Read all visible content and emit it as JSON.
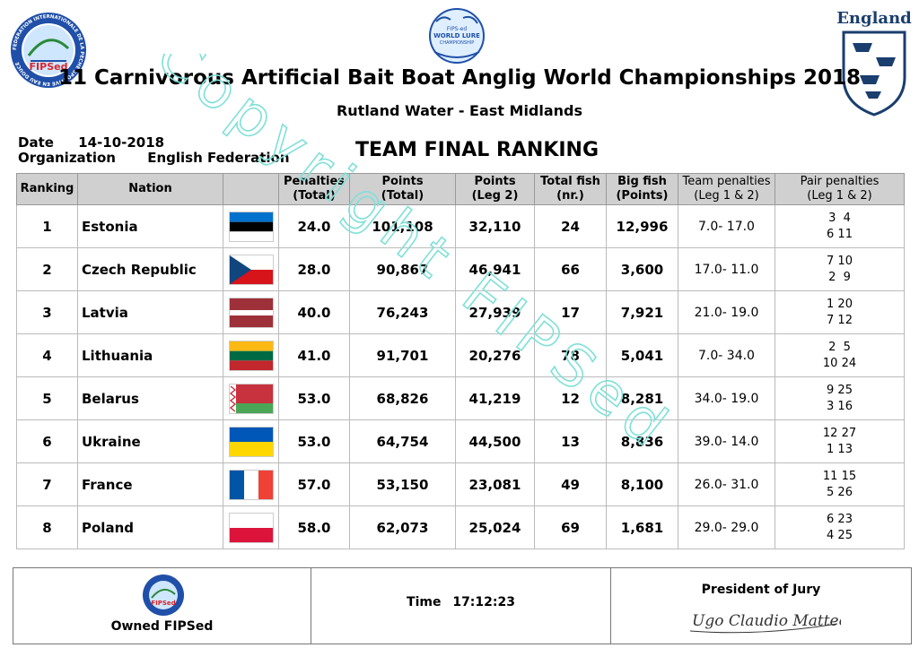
{
  "header": {
    "left_logo_text": "FIPSed",
    "left_logo_ring": "FEDERATION INTERNATIONALE DE LA PECHE SPORTIVE EN EAU DOUCE",
    "center_logo_line1": "FIPS-ed",
    "center_logo_line2": "WORLD LURE",
    "center_logo_line3": "CHAMPIONSHIP",
    "right_logo_text": "England",
    "title": "11 Carnivorous Artificial Bait Boat Anglig World Championships 2018",
    "subtitle": "Rutland Water - East Midlands"
  },
  "meta": {
    "date_label": "Date",
    "date_value": "14-10-2018",
    "org_label": "Organization",
    "org_value": "English Federation",
    "heading": "TEAM FINAL RANKING"
  },
  "table": {
    "columns": {
      "ranking": "Ranking",
      "nation": "Nation",
      "penalties_l1": "Penalties",
      "penalties_l2": "(Total)",
      "points_l1": "Points",
      "points_l2": "(Total)",
      "leg2_l1": "Points",
      "leg2_l2": "(Leg 2)",
      "fish_l1": "Total fish",
      "fish_l2": "(nr.)",
      "big_l1": "Big fish",
      "big_l2": "(Points)",
      "teampen_l1": "Team penalties",
      "teampen_l2": "(Leg 1 & 2)",
      "pairpen_l1": "Pair penalties",
      "pairpen_l2": "(Leg 1 & 2)"
    },
    "rows": [
      {
        "rank": "1",
        "nation": "Estonia",
        "flag": "estonia-flag",
        "penalties": "24.0",
        "points": "101,108",
        "leg2": "32,110",
        "fish": "24",
        "big": "12,996",
        "team_pen": "7.0- 17.0",
        "pair1": "3  4",
        "pair2": "6 11"
      },
      {
        "rank": "2",
        "nation": "Czech Republic",
        "flag": "czech-flag",
        "penalties": "28.0",
        "points": "90,867",
        "leg2": "46,941",
        "fish": "66",
        "big": "3,600",
        "team_pen": "17.0- 11.0",
        "pair1": "7 10",
        "pair2": "2  9"
      },
      {
        "rank": "3",
        "nation": "Latvia",
        "flag": "latvia-flag",
        "penalties": "40.0",
        "points": "76,243",
        "leg2": "27,939",
        "fish": "17",
        "big": "7,921",
        "team_pen": "21.0- 19.0",
        "pair1": "1 20",
        "pair2": "7 12"
      },
      {
        "rank": "4",
        "nation": "Lithuania",
        "flag": "lithuania-flag",
        "penalties": "41.0",
        "points": "91,701",
        "leg2": "20,276",
        "fish": "78",
        "big": "5,041",
        "team_pen": "7.0- 34.0",
        "pair1": "2  5",
        "pair2": "10 24"
      },
      {
        "rank": "5",
        "nation": "Belarus",
        "flag": "belarus-flag",
        "penalties": "53.0",
        "points": "68,826",
        "leg2": "41,219",
        "fish": "12",
        "big": "8,281",
        "team_pen": "34.0- 19.0",
        "pair1": "9 25",
        "pair2": "3 16"
      },
      {
        "rank": "6",
        "nation": "Ukraine",
        "flag": "ukraine-flag",
        "penalties": "53.0",
        "points": "64,754",
        "leg2": "44,500",
        "fish": "13",
        "big": "8,836",
        "team_pen": "39.0- 14.0",
        "pair1": "12 27",
        "pair2": "1 13"
      },
      {
        "rank": "7",
        "nation": "France",
        "flag": "france-flag",
        "penalties": "57.0",
        "points": "53,150",
        "leg2": "23,081",
        "fish": "49",
        "big": "8,100",
        "team_pen": "26.0- 31.0",
        "pair1": "11 15",
        "pair2": "5 26"
      },
      {
        "rank": "8",
        "nation": "Poland",
        "flag": "poland-flag",
        "penalties": "58.0",
        "points": "62,073",
        "leg2": "25,024",
        "fish": "69",
        "big": "1,681",
        "team_pen": "29.0- 29.0",
        "pair1": "6 23",
        "pair2": "4 25"
      }
    ]
  },
  "footer": {
    "owned_label": "Owned FIPSed",
    "time_label": "Time",
    "time_value": "17:12:23",
    "jury_label": "President of Jury",
    "signature": "Ugo Claudio Matteoli"
  },
  "watermark": "Copyright FIPSed",
  "colors": {
    "header_bg": "#d0d0d0",
    "watermark": "#7fe0d8",
    "fipsed_red": "#d9262c",
    "logo_blue": "#1f4fa8"
  }
}
